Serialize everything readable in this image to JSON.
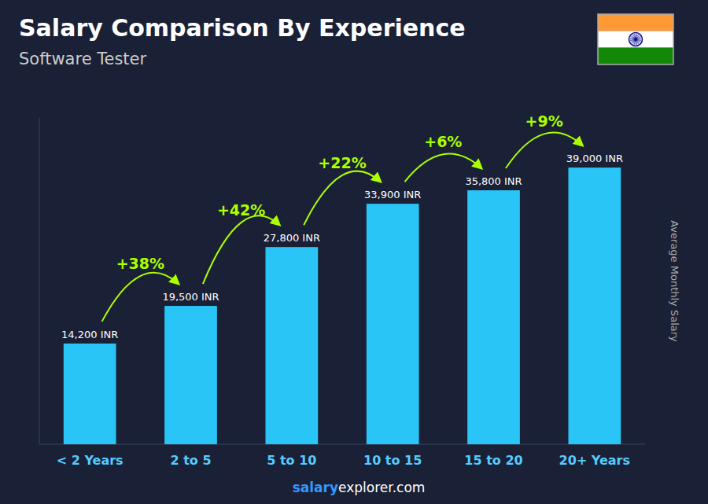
{
  "chart_data": {
    "type": "bar",
    "title": "Salary Comparison By Experience",
    "subtitle": "Software Tester",
    "ylabel": "Average Monthly Salary",
    "categories": [
      "< 2 Years",
      "2 to 5",
      "5 to 10",
      "10 to 15",
      "15 to 20",
      "20+ Years"
    ],
    "values": [
      14200,
      19500,
      27800,
      33900,
      35800,
      39000
    ],
    "value_labels": [
      "14,200 INR",
      "19,500 INR",
      "27,800 INR",
      "33,900 INR",
      "35,800 INR",
      "39,000 INR"
    ],
    "data_labels": true,
    "annotations": [
      "+38%",
      "+42%",
      "+22%",
      "+6%",
      "+9%"
    ],
    "watermark": [
      "salary",
      "explorer.com"
    ],
    "color": "#29c5f6",
    "ylim": [
      0,
      46000
    ],
    "tick_labels": "x",
    "grid": false
  }
}
